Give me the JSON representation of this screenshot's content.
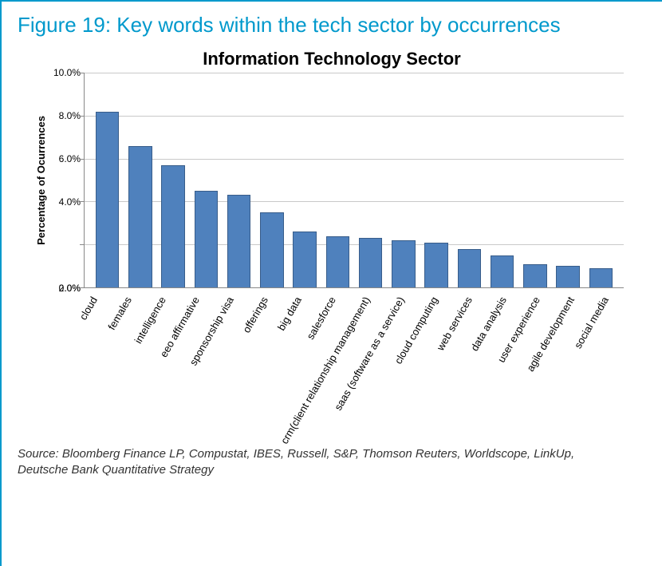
{
  "figure": {
    "title": "Figure 19: Key words within the tech sector by occurrences",
    "border_color": "#0099cc",
    "title_color": "#0099cc",
    "title_fontsize": 26
  },
  "chart": {
    "type": "bar",
    "title": "Information Technology Sector",
    "title_fontsize": 22,
    "title_fontweight": 700,
    "ylabel": "Percentage of Ocurrences",
    "ylabel_fontsize": 13,
    "ylabel_fontweight": 700,
    "ylim": [
      0,
      10
    ],
    "ytick_step": 2,
    "ytick_format": "percent_1dp",
    "yticks": [
      "10.0%",
      "8.0%",
      "6.0%",
      "4.0%",
      "2.0%",
      "0.0%"
    ],
    "grid_color": "#c9c9c9",
    "axis_color": "#888888",
    "background_color": "#ffffff",
    "bar_fill": "#4f81bd",
    "bar_border": "#385d8a",
    "bar_width": 0.72,
    "xlabel_rotation_deg": -60,
    "xlabel_fontsize": 13,
    "categories": [
      "cloud",
      "females",
      "intelligence",
      "eeo affirmative",
      "sponsorship visa",
      "offerings",
      "big data",
      "salesforce",
      "crm(client relationship management)",
      "saas (software as a service)",
      "cloud computing",
      "web services",
      "data analysis",
      "user experience",
      "agile development",
      "social media"
    ],
    "values": [
      8.2,
      6.6,
      5.7,
      4.5,
      4.3,
      3.5,
      2.6,
      2.4,
      2.3,
      2.2,
      2.1,
      1.8,
      1.5,
      1.1,
      1.0,
      0.9
    ]
  },
  "source": {
    "text": "Source: Bloomberg Finance LP, Compustat, IBES, Russell, S&P, Thomson Reuters, Worldscope, LinkUp, Deutsche Bank Quantitative Strategy",
    "fontsize": 15,
    "fontstyle": "italic"
  }
}
